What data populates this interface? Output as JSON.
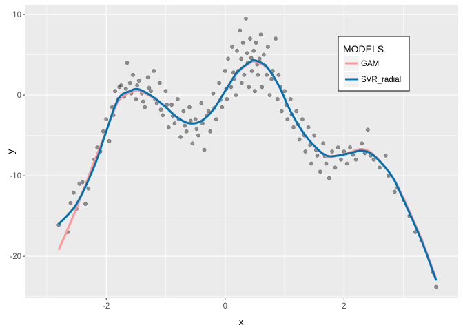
{
  "chart_data": {
    "type": "scatter",
    "title": "",
    "xlabel": "x",
    "ylabel": "y",
    "xlim": [
      -3.37,
      3.92
    ],
    "ylim": [
      -25.2,
      11.2
    ],
    "x_ticks": [
      -2,
      0,
      2
    ],
    "y_ticks": [
      10,
      0,
      -10,
      -20
    ],
    "x_minor": [
      -3,
      -1,
      1,
      3
    ],
    "y_minor": [
      5,
      -5,
      -15,
      -25
    ],
    "grid": true,
    "background": "#EBEBEB",
    "points_color": "#000000",
    "points": [
      [
        -2.8,
        -16.1
      ],
      [
        -2.65,
        -17
      ],
      [
        -2.6,
        -13.4
      ],
      [
        -2.55,
        -12.1
      ],
      [
        -2.5,
        -14.1
      ],
      [
        -2.45,
        -11
      ],
      [
        -2.4,
        -10.8
      ],
      [
        -2.35,
        -13.5
      ],
      [
        -2.3,
        -11.6
      ],
      [
        -2.2,
        -8
      ],
      [
        -2.15,
        -6.5
      ],
      [
        -2.1,
        -7
      ],
      [
        -2.05,
        -4.5
      ],
      [
        -2.0,
        -3
      ],
      [
        -1.95,
        -5.7
      ],
      [
        -1.9,
        -1.5
      ],
      [
        -1.88,
        -2.5
      ],
      [
        -1.85,
        0.5
      ],
      [
        -1.8,
        -0.5
      ],
      [
        -1.78,
        1
      ],
      [
        -1.75,
        1.2
      ],
      [
        -1.7,
        -0.2
      ],
      [
        -1.67,
        0.8
      ],
      [
        -1.65,
        4
      ],
      [
        -1.6,
        1.5
      ],
      [
        -1.58,
        0.2
      ],
      [
        -1.55,
        2.5
      ],
      [
        -1.5,
        -0.5
      ],
      [
        -1.48,
        1.2
      ],
      [
        -1.45,
        1.8
      ],
      [
        -1.4,
        0.2
      ],
      [
        -1.38,
        -0.8
      ],
      [
        -1.35,
        -1.5
      ],
      [
        -1.3,
        2.2
      ],
      [
        -1.28,
        0.9
      ],
      [
        -1.25,
        0.5
      ],
      [
        -1.2,
        3
      ],
      [
        -1.18,
        -0.5
      ],
      [
        -1.15,
        -1
      ],
      [
        -1.1,
        1.5
      ],
      [
        -1.08,
        -1.8
      ],
      [
        -1.05,
        -2.5
      ],
      [
        -1.0,
        0.5
      ],
      [
        -0.98,
        -1.2
      ],
      [
        -0.95,
        -4
      ],
      [
        -0.9,
        -1.2
      ],
      [
        -0.88,
        -2.6
      ],
      [
        -0.85,
        -3.5
      ],
      [
        -0.8,
        -0.5
      ],
      [
        -0.78,
        -3
      ],
      [
        -0.75,
        -5.2
      ],
      [
        -0.7,
        -2
      ],
      [
        -0.68,
        -3.8
      ],
      [
        -0.65,
        -4.5
      ],
      [
        -0.6,
        -1.5
      ],
      [
        -0.58,
        -3.2
      ],
      [
        -0.55,
        -6
      ],
      [
        -0.5,
        -3
      ],
      [
        -0.48,
        -4.2
      ],
      [
        -0.45,
        -5
      ],
      [
        -0.4,
        -1
      ],
      [
        -0.38,
        -3.5
      ],
      [
        -0.35,
        -6.8
      ],
      [
        -0.3,
        -2.5
      ],
      [
        -0.28,
        -2
      ],
      [
        -0.25,
        -4.5
      ],
      [
        -0.2,
        0.2
      ],
      [
        -0.18,
        -1.6
      ],
      [
        -0.15,
        -3
      ],
      [
        -0.1,
        1.5
      ],
      [
        -0.08,
        -0.6
      ],
      [
        -0.05,
        -1.5
      ],
      [
        0,
        3
      ],
      [
        0.02,
        0.8
      ],
      [
        0.03,
        -0.5
      ],
      [
        0.05,
        4.5
      ],
      [
        0.1,
        1
      ],
      [
        0.12,
        6
      ],
      [
        0.14,
        2.8
      ],
      [
        0.15,
        2
      ],
      [
        0.18,
        0
      ],
      [
        0.2,
        5.5
      ],
      [
        0.22,
        3
      ],
      [
        0.25,
        8
      ],
      [
        0.27,
        4.5
      ],
      [
        0.28,
        1.5
      ],
      [
        0.3,
        6.5
      ],
      [
        0.32,
        2.5
      ],
      [
        0.35,
        9.5
      ],
      [
        0.37,
        5.2
      ],
      [
        0.38,
        4
      ],
      [
        0.4,
        1
      ],
      [
        0.42,
        7
      ],
      [
        0.44,
        4.6
      ],
      [
        0.45,
        3
      ],
      [
        0.48,
        5.5
      ],
      [
        0.5,
        0.5
      ],
      [
        0.52,
        6.5
      ],
      [
        0.54,
        3.8
      ],
      [
        0.55,
        2.5
      ],
      [
        0.58,
        4.5
      ],
      [
        0.6,
        7.5
      ],
      [
        0.62,
        1
      ],
      [
        0.65,
        5
      ],
      [
        0.68,
        3.6
      ],
      [
        0.7,
        2.5
      ],
      [
        0.72,
        6
      ],
      [
        0.75,
        0
      ],
      [
        0.78,
        2
      ],
      [
        0.8,
        3
      ],
      [
        0.85,
        7
      ],
      [
        0.88,
        -0.5
      ],
      [
        0.9,
        2.5
      ],
      [
        0.93,
        1
      ],
      [
        0.95,
        -2
      ],
      [
        1.0,
        0.5
      ],
      [
        1.03,
        -1.2
      ],
      [
        1.05,
        -3
      ],
      [
        1.1,
        -0.5
      ],
      [
        1.12,
        -2.4
      ],
      [
        1.15,
        -4
      ],
      [
        1.2,
        -2
      ],
      [
        1.22,
        -3.6
      ],
      [
        1.25,
        -5.5
      ],
      [
        1.3,
        -3
      ],
      [
        1.33,
        -5
      ],
      [
        1.35,
        -7
      ],
      [
        1.4,
        -4
      ],
      [
        1.43,
        -6.2
      ],
      [
        1.45,
        -8.5
      ],
      [
        1.5,
        -5
      ],
      [
        1.53,
        -6.8
      ],
      [
        1.55,
        -7.5
      ],
      [
        1.6,
        -9.5
      ],
      [
        1.65,
        -6
      ],
      [
        1.68,
        -7.6
      ],
      [
        1.7,
        -8.5
      ],
      [
        1.75,
        -10.3
      ],
      [
        1.8,
        -7
      ],
      [
        1.85,
        -9
      ],
      [
        1.9,
        -6.5
      ],
      [
        1.95,
        -8
      ],
      [
        2.0,
        -7
      ],
      [
        2.05,
        -8.5
      ],
      [
        2.1,
        -6.5
      ],
      [
        2.15,
        -7.4
      ],
      [
        2.2,
        -8
      ],
      [
        2.3,
        -6
      ],
      [
        2.35,
        -7.2
      ],
      [
        2.4,
        -4.3
      ],
      [
        2.45,
        -7.5
      ],
      [
        2.5,
        -8
      ],
      [
        2.6,
        -9
      ],
      [
        2.7,
        -7.5
      ],
      [
        2.75,
        -10
      ],
      [
        2.85,
        -12
      ],
      [
        2.9,
        -11.5
      ],
      [
        3.0,
        -13
      ],
      [
        3.1,
        -15
      ],
      [
        3.2,
        -17
      ],
      [
        3.3,
        -18
      ],
      [
        3.5,
        -22
      ],
      [
        3.55,
        -23.8
      ]
    ],
    "series": [
      {
        "name": "GAM",
        "color": "#FF9999",
        "x": [
          -2.8,
          -2.5,
          -2.2,
          -2.0,
          -1.8,
          -1.6,
          -1.45,
          -1.2,
          -1.0,
          -0.8,
          -0.6,
          -0.4,
          -0.2,
          0,
          0.2,
          0.4,
          0.5,
          0.7,
          0.9,
          1.1,
          1.3,
          1.5,
          1.7,
          1.9,
          2.1,
          2.3,
          2.5,
          2.8,
          3.0,
          3.3,
          3.55
        ],
        "y": [
          -19.2,
          -14,
          -8.2,
          -4.5,
          -0.8,
          0.3,
          0.5,
          -0.4,
          -1.5,
          -2.8,
          -3.5,
          -3.2,
          -1.8,
          0.5,
          2.7,
          3.9,
          4.1,
          3.4,
          1.2,
          -2.0,
          -4.5,
          -6.3,
          -7.6,
          -7.5,
          -7.1,
          -6.7,
          -7.4,
          -10,
          -12.8,
          -17.8,
          -22.8
        ]
      },
      {
        "name": "SVR_radial",
        "color": "#0072B2",
        "x": [
          -2.8,
          -2.5,
          -2.2,
          -2.0,
          -1.8,
          -1.6,
          -1.45,
          -1.2,
          -1.0,
          -0.8,
          -0.6,
          -0.4,
          -0.2,
          0,
          0.2,
          0.4,
          0.5,
          0.7,
          0.9,
          1.1,
          1.3,
          1.5,
          1.7,
          1.9,
          2.1,
          2.3,
          2.5,
          2.8,
          3.0,
          3.3,
          3.55
        ],
        "y": [
          -16,
          -13.5,
          -8.8,
          -4.5,
          -0.5,
          0.5,
          0.7,
          -0.3,
          -1.5,
          -2.8,
          -3.5,
          -3.2,
          -1.8,
          0.5,
          2.8,
          4.0,
          4.3,
          3.5,
          1.2,
          -2.0,
          -4.5,
          -6.3,
          -7.5,
          -7.5,
          -7.2,
          -6.9,
          -7.5,
          -10,
          -13,
          -18,
          -23
        ]
      }
    ],
    "legend": {
      "title": "MODELS",
      "position": "top-right",
      "entries": [
        "GAM",
        "SVR_radial"
      ]
    }
  }
}
